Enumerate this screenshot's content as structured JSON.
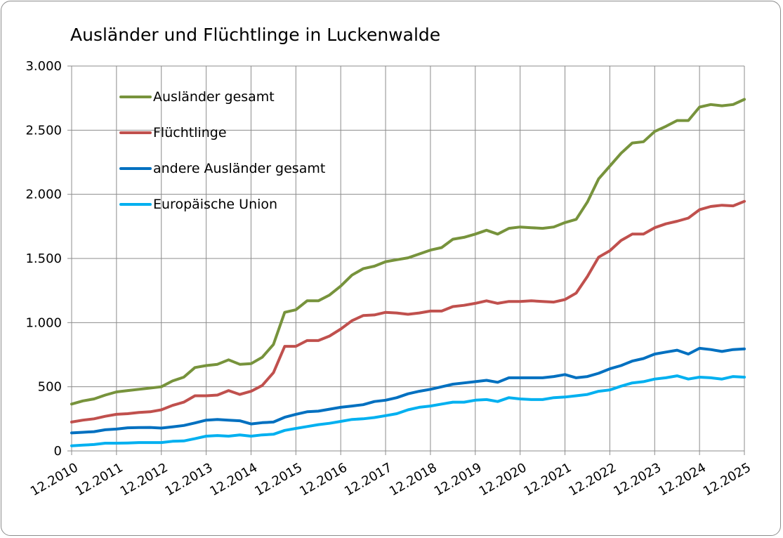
{
  "chart_data": {
    "type": "line",
    "title": "Ausländer und Flüchtlinge in Luckenwalde",
    "xlabel": "",
    "ylabel": "",
    "ylim": [
      0,
      3000
    ],
    "y_ticks": [
      0,
      500,
      1000,
      1500,
      2000,
      2500,
      3000
    ],
    "y_tick_labels": [
      "0",
      "500",
      "1.000",
      "1.500",
      "2.000",
      "2.500",
      "3.000"
    ],
    "x_ticks": [
      "12.2010",
      "12.2011",
      "12.2012",
      "12.2013",
      "12.2014",
      "12.2015",
      "12.2016",
      "12.2017",
      "12.2018",
      "12.2019",
      "12.2020",
      "12.2021",
      "12.2022",
      "12.2023",
      "12.2024",
      "12.2025"
    ],
    "x_step": "quarterly",
    "grid": "vertical and horizontal",
    "legend_position": "top-left",
    "series": [
      {
        "name": "Ausländer gesamt",
        "color": "#77933c",
        "values": [
          365,
          390,
          405,
          435,
          460,
          470,
          480,
          490,
          500,
          545,
          575,
          650,
          665,
          675,
          710,
          675,
          680,
          730,
          830,
          1080,
          1100,
          1170,
          1170,
          1215,
          1285,
          1370,
          1420,
          1440,
          1475,
          1490,
          1505,
          1535,
          1565,
          1585,
          1650,
          1665,
          1690,
          1720,
          1690,
          1735,
          1745,
          1740,
          1735,
          1745,
          1780,
          1805,
          1940,
          2120,
          2220,
          2320,
          2400,
          2410,
          2490,
          2530,
          2575,
          2575,
          2680,
          2700,
          2690,
          2700,
          2740
        ]
      },
      {
        "name": "Flüchtlinge",
        "color": "#c0504d",
        "values": [
          225,
          240,
          250,
          270,
          285,
          290,
          300,
          305,
          320,
          355,
          380,
          430,
          430,
          435,
          470,
          440,
          465,
          510,
          610,
          815,
          815,
          860,
          860,
          895,
          950,
          1015,
          1055,
          1060,
          1080,
          1075,
          1065,
          1075,
          1090,
          1090,
          1125,
          1135,
          1150,
          1170,
          1150,
          1165,
          1165,
          1170,
          1165,
          1160,
          1180,
          1230,
          1360,
          1510,
          1560,
          1640,
          1690,
          1690,
          1740,
          1770,
          1790,
          1815,
          1880,
          1905,
          1915,
          1910,
          1945
        ]
      },
      {
        "name": "andere Ausländer gesamt",
        "color": "#0070c0",
        "values": [
          140,
          145,
          150,
          165,
          170,
          180,
          182,
          183,
          178,
          188,
          198,
          218,
          240,
          245,
          240,
          235,
          210,
          220,
          225,
          262,
          285,
          305,
          310,
          325,
          340,
          350,
          360,
          385,
          395,
          415,
          445,
          465,
          480,
          500,
          520,
          530,
          540,
          550,
          535,
          570,
          570,
          570,
          570,
          580,
          595,
          570,
          580,
          605,
          640,
          665,
          700,
          720,
          755,
          770,
          785,
          755,
          800,
          790,
          775,
          790,
          795
        ]
      },
      {
        "name": "Europäische Union",
        "color": "#00b0f0",
        "values": [
          40,
          45,
          50,
          60,
          60,
          62,
          65,
          65,
          65,
          75,
          78,
          95,
          115,
          120,
          115,
          125,
          115,
          125,
          130,
          160,
          175,
          190,
          205,
          215,
          230,
          245,
          250,
          260,
          275,
          290,
          320,
          340,
          350,
          365,
          380,
          380,
          395,
          400,
          385,
          415,
          405,
          400,
          400,
          415,
          420,
          430,
          440,
          465,
          475,
          505,
          530,
          540,
          560,
          570,
          585,
          560,
          575,
          570,
          560,
          580,
          575
        ]
      }
    ]
  }
}
